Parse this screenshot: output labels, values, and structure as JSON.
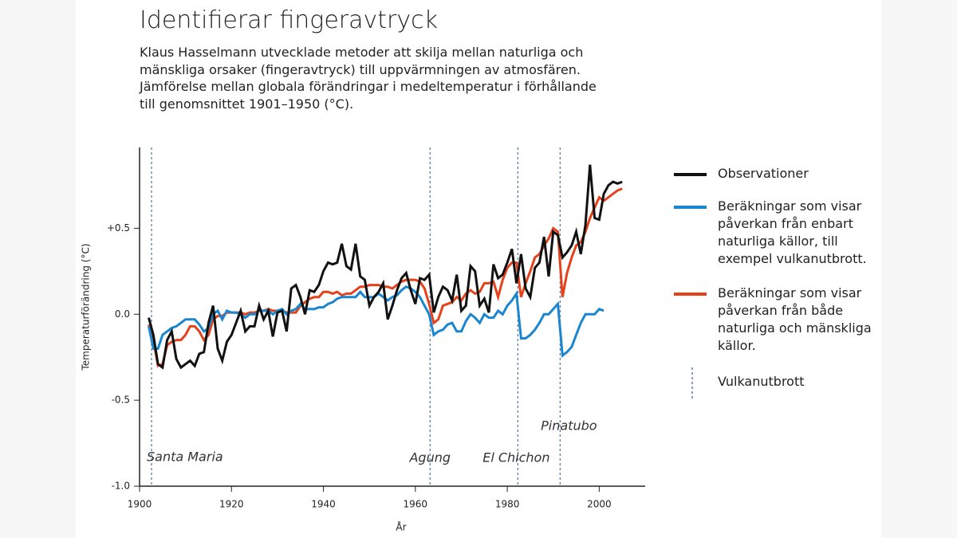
{
  "chart_data": {
    "type": "line",
    "title": "Identifierar fingeravtryck",
    "subtitle": "Klaus Hasselmann utvecklade metoder att skilja mellan naturliga och mänskliga orsaker (fingeravtryck) till uppvärmningen av atmosfären. Jämförelse mellan globala förändringar i medeltemperatur i förhållande till genomsnittet 1901–1950 (°C).",
    "x_label": "År",
    "y_label": "Temperaturförändring (°C)",
    "xlim": [
      1900,
      2010
    ],
    "xticks": [
      1900,
      1920,
      1940,
      1960,
      1980,
      2000
    ],
    "ylim": [
      -1.0,
      0.97
    ],
    "yticks": [
      {
        "value": -1.0,
        "label": "-1.0"
      },
      -0.5,
      {
        "value": 0,
        "label": "0.0"
      },
      {
        "value": 0.5,
        "label": "+0.5"
      }
    ],
    "x": [
      1902,
      1903,
      1904,
      1905,
      1906,
      1907,
      1908,
      1909,
      1910,
      1911,
      1912,
      1913,
      1914,
      1915,
      1916,
      1917,
      1918,
      1919,
      1920,
      1921,
      1922,
      1923,
      1924,
      1925,
      1926,
      1927,
      1928,
      1929,
      1930,
      1931,
      1932,
      1933,
      1934,
      1935,
      1936,
      1937,
      1938,
      1939,
      1940,
      1941,
      1942,
      1943,
      1944,
      1945,
      1946,
      1947,
      1948,
      1949,
      1950,
      1951,
      1952,
      1953,
      1954,
      1955,
      1956,
      1957,
      1958,
      1959,
      1960,
      1961,
      1962,
      1963,
      1964,
      1965,
      1966,
      1967,
      1968,
      1969,
      1970,
      1971,
      1972,
      1973,
      1974,
      1975,
      1976,
      1977,
      1978,
      1979,
      1980,
      1981,
      1982,
      1983,
      1984,
      1985,
      1986,
      1987,
      1988,
      1989,
      1990,
      1991,
      1992,
      1993,
      1994,
      1995,
      1996,
      1997,
      1998,
      1999,
      2000,
      2001,
      2002,
      2003,
      2004,
      2005
    ],
    "series": [
      {
        "name": "Beräkningar som visar påverkan från både naturliga och mänskliga källor.",
        "color": "#e5421c",
        "values": [
          -0.06,
          -0.15,
          -0.3,
          -0.29,
          -0.18,
          -0.16,
          -0.15,
          -0.15,
          -0.12,
          -0.07,
          -0.07,
          -0.1,
          -0.15,
          -0.12,
          -0.03,
          -0.01,
          -0.01,
          0.01,
          0.01,
          0.01,
          0.01,
          0.0,
          0.01,
          0.01,
          0.02,
          0.02,
          0.03,
          0.02,
          0.02,
          0.02,
          0.01,
          0.01,
          0.01,
          0.05,
          0.07,
          0.09,
          0.1,
          0.1,
          0.13,
          0.13,
          0.12,
          0.13,
          0.11,
          0.12,
          0.12,
          0.14,
          0.16,
          0.16,
          0.17,
          0.17,
          0.17,
          0.16,
          0.16,
          0.15,
          0.17,
          0.19,
          0.2,
          0.2,
          0.2,
          0.19,
          0.15,
          0.06,
          -0.05,
          -0.03,
          0.05,
          0.06,
          0.07,
          0.1,
          0.08,
          0.12,
          0.14,
          0.12,
          0.13,
          0.18,
          0.18,
          0.19,
          0.1,
          0.2,
          0.27,
          0.3,
          0.3,
          0.1,
          0.18,
          0.25,
          0.33,
          0.35,
          0.4,
          0.44,
          0.5,
          0.48,
          0.1,
          0.24,
          0.33,
          0.4,
          0.42,
          0.48,
          0.56,
          0.62,
          0.68,
          0.66,
          0.68,
          0.7,
          0.72,
          0.73
        ]
      },
      {
        "name": "Beräkningar som visar påverkan från enbart naturliga källor, till exempel vulkanutbrott.",
        "color": "#1a86d0",
        "values": [
          -0.07,
          -0.2,
          -0.2,
          -0.12,
          -0.1,
          -0.08,
          -0.07,
          -0.05,
          -0.03,
          -0.03,
          -0.03,
          -0.06,
          -0.1,
          -0.08,
          0.0,
          0.02,
          -0.03,
          0.02,
          0.01,
          0.01,
          0.0,
          -0.02,
          0.0,
          0.0,
          0.02,
          0.02,
          0.02,
          0.0,
          0.02,
          0.03,
          0.0,
          0.02,
          0.03,
          0.06,
          0.03,
          0.03,
          0.03,
          0.04,
          0.04,
          0.06,
          0.07,
          0.09,
          0.1,
          0.1,
          0.1,
          0.1,
          0.13,
          0.1,
          0.1,
          0.1,
          0.12,
          0.1,
          0.08,
          0.1,
          0.11,
          0.14,
          0.16,
          0.15,
          0.13,
          0.1,
          0.05,
          0.0,
          -0.12,
          -0.1,
          -0.09,
          -0.06,
          -0.05,
          -0.1,
          -0.1,
          -0.04,
          0.0,
          -0.02,
          -0.05,
          0.0,
          -0.02,
          -0.02,
          0.02,
          0.0,
          0.05,
          0.08,
          0.12,
          -0.14,
          -0.14,
          -0.12,
          -0.09,
          -0.05,
          0.0,
          0.0,
          0.03,
          0.06,
          -0.24,
          -0.22,
          -0.19,
          -0.12,
          -0.05,
          0.0,
          0.0,
          0.0,
          0.03,
          0.02,
          null,
          null,
          null,
          null
        ]
      },
      {
        "name": "Observationer",
        "color": "#111111",
        "values": [
          -0.02,
          -0.12,
          -0.29,
          -0.31,
          -0.15,
          -0.1,
          -0.26,
          -0.31,
          -0.29,
          -0.27,
          -0.3,
          -0.23,
          -0.22,
          -0.05,
          0.05,
          -0.2,
          -0.27,
          -0.16,
          -0.12,
          -0.05,
          0.02,
          -0.1,
          -0.07,
          -0.07,
          0.05,
          -0.03,
          0.02,
          -0.13,
          0.01,
          0.02,
          -0.1,
          0.15,
          0.17,
          0.1,
          0.0,
          0.14,
          0.13,
          0.17,
          0.25,
          0.3,
          0.29,
          0.3,
          0.41,
          0.28,
          0.26,
          0.41,
          0.22,
          0.2,
          0.05,
          0.1,
          0.13,
          0.18,
          -0.03,
          0.05,
          0.14,
          0.21,
          0.24,
          0.14,
          0.06,
          0.21,
          0.2,
          0.23,
          0.01,
          0.1,
          0.16,
          0.14,
          0.08,
          0.23,
          0.02,
          0.05,
          0.28,
          0.25,
          0.05,
          0.09,
          0.01,
          0.29,
          0.21,
          0.23,
          0.3,
          0.38,
          0.18,
          0.35,
          0.15,
          0.1,
          0.27,
          0.3,
          0.45,
          0.22,
          0.48,
          0.46,
          0.33,
          0.36,
          0.4,
          0.48,
          0.35,
          0.52,
          0.87,
          0.56,
          0.55,
          0.7,
          0.75,
          0.77,
          0.76,
          0.77
        ]
      }
    ],
    "legend_order": [
      2,
      1,
      0
    ],
    "volcano_legend": "Vulkanutbrott",
    "volcano_color": "#5a7fa8",
    "volcanoes": [
      {
        "name": "Santa Maria",
        "year": 1902.6
      },
      {
        "name": "Agung",
        "year": 1963.2
      },
      {
        "name": "El Chichon",
        "year": 1982.3
      },
      {
        "name": "Pinatubo",
        "year": 1991.5
      }
    ]
  }
}
